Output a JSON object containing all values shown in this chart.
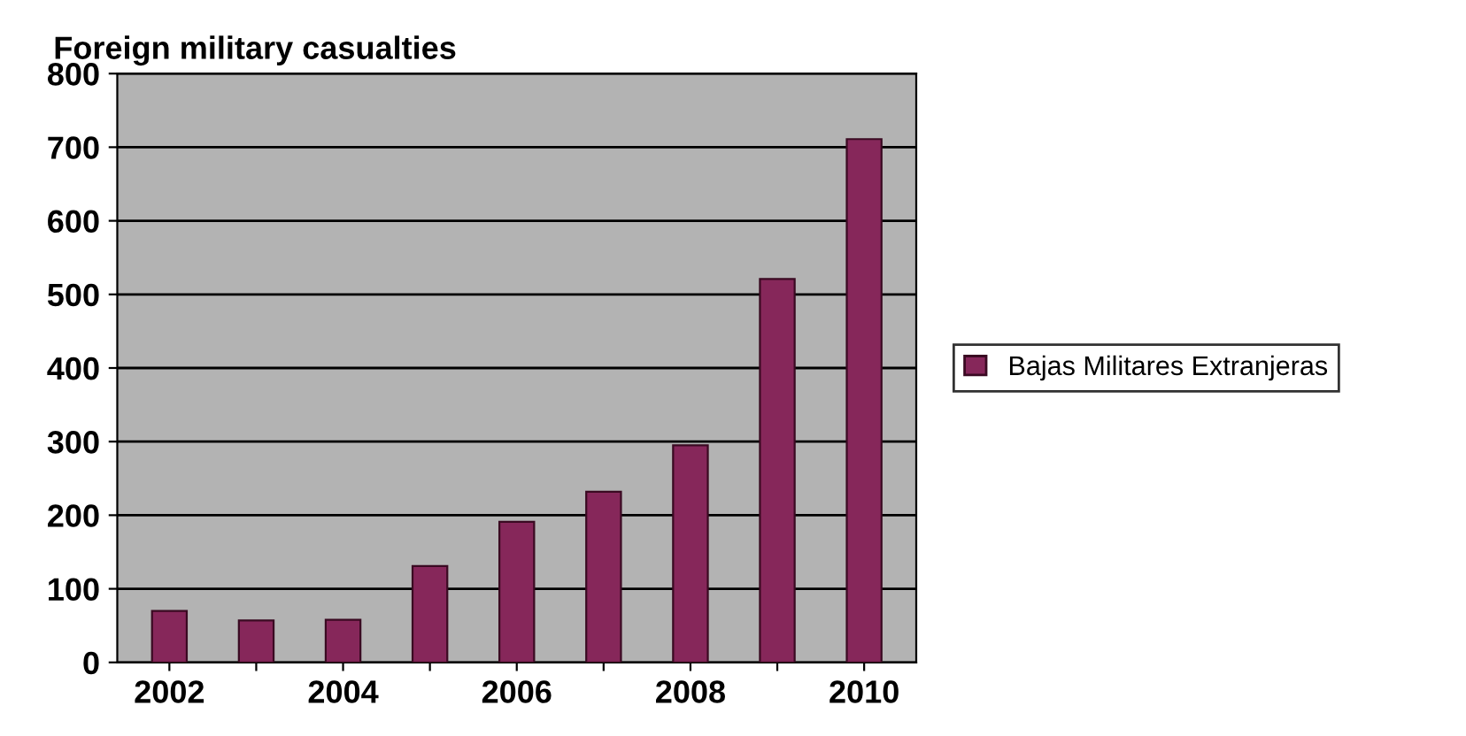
{
  "chart_data": {
    "type": "bar",
    "title": "Foreign military casualties",
    "categories": [
      "2002",
      null,
      "2004",
      null,
      "2006",
      null,
      "2008",
      null,
      "2010"
    ],
    "series": [
      {
        "name": "Bajas Militares Extranjeras",
        "color": "#86275a",
        "values": [
          70,
          57,
          58,
          131,
          191,
          232,
          295,
          521,
          711
        ]
      }
    ],
    "ylim": [
      0,
      800
    ],
    "yticks": [
      0,
      100,
      200,
      300,
      400,
      500,
      600,
      700,
      800
    ],
    "grid": "y",
    "legend": "right"
  }
}
